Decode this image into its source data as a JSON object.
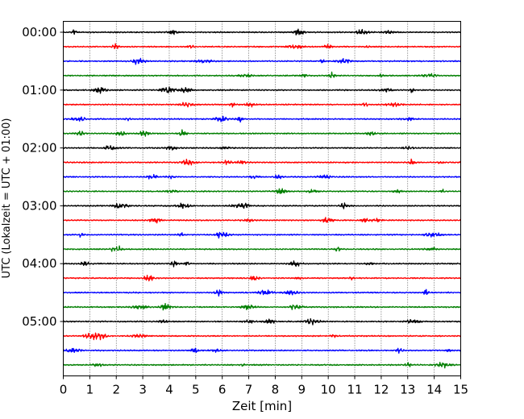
{
  "chart_data": {
    "type": "line",
    "title": "",
    "xlabel": "Zeit  [min]",
    "ylabel": "UTC (Lokalzeit = UTC + 01:00)",
    "xlim": [
      0,
      15
    ],
    "x_ticks": [
      0,
      1,
      2,
      3,
      4,
      5,
      6,
      7,
      8,
      9,
      10,
      11,
      12,
      13,
      14,
      15
    ],
    "y_tick_labels": [
      "00:00",
      "01:00",
      "02:00",
      "03:00",
      "04:00",
      "05:00"
    ],
    "grid": "vertical dotted",
    "trace_interval_minutes": 15,
    "trace_count": 24,
    "trace_colors": [
      "#000000",
      "#ff0000",
      "#0000ff",
      "#007f00"
    ],
    "traces": [
      {
        "start": "00:00",
        "color": "#000000"
      },
      {
        "start": "00:15",
        "color": "#ff0000"
      },
      {
        "start": "00:30",
        "color": "#0000ff"
      },
      {
        "start": "00:45",
        "color": "#007f00"
      },
      {
        "start": "01:00",
        "color": "#000000"
      },
      {
        "start": "01:15",
        "color": "#ff0000"
      },
      {
        "start": "01:30",
        "color": "#0000ff"
      },
      {
        "start": "01:45",
        "color": "#007f00"
      },
      {
        "start": "02:00",
        "color": "#000000"
      },
      {
        "start": "02:15",
        "color": "#ff0000"
      },
      {
        "start": "02:30",
        "color": "#0000ff"
      },
      {
        "start": "02:45",
        "color": "#007f00"
      },
      {
        "start": "03:00",
        "color": "#000000"
      },
      {
        "start": "03:15",
        "color": "#ff0000"
      },
      {
        "start": "03:30",
        "color": "#0000ff"
      },
      {
        "start": "03:45",
        "color": "#007f00"
      },
      {
        "start": "04:00",
        "color": "#000000"
      },
      {
        "start": "04:15",
        "color": "#ff0000"
      },
      {
        "start": "04:30",
        "color": "#0000ff"
      },
      {
        "start": "04:45",
        "color": "#007f00"
      },
      {
        "start": "05:00",
        "color": "#000000"
      },
      {
        "start": "05:15",
        "color": "#ff0000"
      },
      {
        "start": "05:30",
        "color": "#0000ff"
      },
      {
        "start": "05:45",
        "color": "#007f00"
      }
    ]
  }
}
